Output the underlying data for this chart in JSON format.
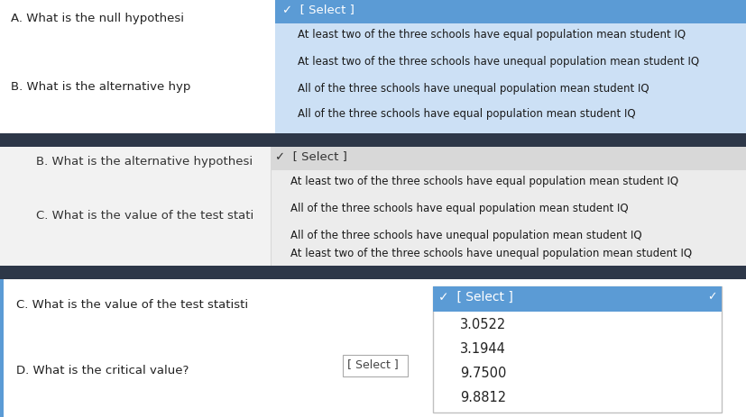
{
  "bg_color": "#e8e8e8",
  "white": "#ffffff",
  "dark_bar_color": "#2d3748",
  "dropdown1_bg": "#cce0f5",
  "dropdown2_bg": "#f0f0f0",
  "select_highlight": "#5b9bd5",
  "blue_left_bar": "#5b9bd5",
  "section1_label_A": "A. What is the null hypothesi",
  "section1_label_B": "B. What is the alternative hyp",
  "dropdown1_header": "✓  [ Select ]",
  "dropdown1_options": [
    "At least two of the three schools have equal population mean student IQ",
    "At least two of the three schools have unequal population mean student IQ",
    "All of the three schools have unequal population mean student IQ",
    "All of the three schools have equal population mean student IQ"
  ],
  "section2_label_B": "B. What is the alternative hypothesi",
  "section2_label_C": "C. What is the value of the test stati",
  "dropdown2_header": "✓  [ Select ]",
  "dropdown2_options": [
    "At least two of the three schools have equal population mean student IQ",
    "All of the three schools have equal population mean student IQ",
    "All of the three schools have unequal population mean student IQ",
    "At least two of the three schools have unequal population mean student IQ"
  ],
  "section3_label_C": "C. What is the value of the test statisti",
  "section3_label_D": "D. What is the critical value?",
  "dropdown3_header": "✓  [ Select ]",
  "dropdown3_checkmark": "✓",
  "dropdown3_options": [
    "3.0522",
    "3.1944",
    "9.7500",
    "9.8812"
  ],
  "select_plain": "[ Select ]"
}
